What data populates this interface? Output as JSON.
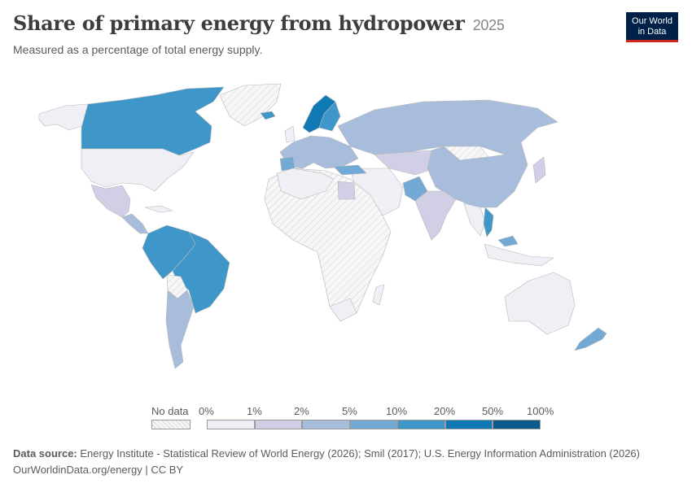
{
  "header": {
    "title": "Share of primary energy from hydropower",
    "year": "2025",
    "subtitle": "Measured as a percentage of total energy supply."
  },
  "logo": {
    "line1": "Our World",
    "line2": "in Data"
  },
  "legend": {
    "no_data_label": "No data",
    "bins": [
      {
        "label": "0%",
        "color": "#f1eff6"
      },
      {
        "label": "1%",
        "color": "#d0cfe6"
      },
      {
        "label": "2%",
        "color": "#a8bcdc"
      },
      {
        "label": "5%",
        "color": "#73a9d5"
      },
      {
        "label": "10%",
        "color": "#3f96c8"
      },
      {
        "label": "20%",
        "color": "#0f79b6"
      },
      {
        "label": "50%",
        "color": "#0a5a8a"
      }
    ],
    "end_label": "100%"
  },
  "colors": {
    "no_data": "#ececec",
    "border": "#b8b8b8"
  },
  "map_regions": [
    {
      "name": "Canada",
      "color": "#3f96c8"
    },
    {
      "name": "United States",
      "color": "#f1eff6"
    },
    {
      "name": "Mexico",
      "color": "#d0cfe6"
    },
    {
      "name": "Brazil",
      "color": "#3f96c8"
    },
    {
      "name": "Colombia/Venezuela/Peru",
      "color": "#3f96c8"
    },
    {
      "name": "Argentina",
      "color": "#a8bcdc"
    },
    {
      "name": "Chile",
      "color": "#a8bcdc"
    },
    {
      "name": "Norway",
      "color": "#0f79b6"
    },
    {
      "name": "Sweden",
      "color": "#3f96c8"
    },
    {
      "name": "Russia",
      "color": "#a8bcdc"
    },
    {
      "name": "China",
      "color": "#a8bcdc"
    },
    {
      "name": "India",
      "color": "#d0cfe6"
    },
    {
      "name": "Vietnam",
      "color": "#3f96c8"
    },
    {
      "name": "Australia",
      "color": "#f1eff6"
    },
    {
      "name": "New Zealand",
      "color": "#73a9d5"
    },
    {
      "name": "Africa",
      "color": "#ececec"
    }
  ],
  "footer": {
    "source_label": "Data source:",
    "source_text": "Energy Institute - Statistical Review of World Energy (2026); Smil (2017); U.S. Energy Information Administration (2026)",
    "url": "OurWorldinData.org/energy | CC BY"
  }
}
